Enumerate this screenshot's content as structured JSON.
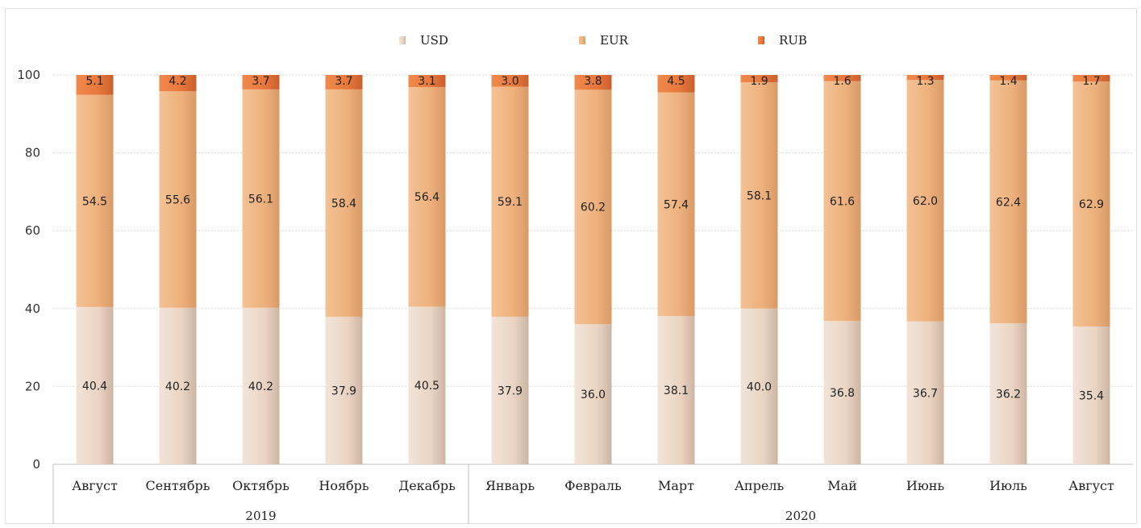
{
  "chart_data": {
    "type": "bar",
    "stacked": true,
    "title": "",
    "xlabel": "",
    "ylabel": "",
    "ylim": [
      0,
      100
    ],
    "yticks": [
      0,
      20,
      40,
      60,
      80,
      100
    ],
    "grid": true,
    "legend_position": "top",
    "categories": [
      "Август",
      "Сентябрь",
      "Октябрь",
      "Ноябрь",
      "Декабрь",
      "Январь",
      "Февраль",
      "Март",
      "Апрель",
      "Май",
      "Июнь",
      "Июль",
      "Август"
    ],
    "groups": [
      {
        "label": "2019",
        "count": 5
      },
      {
        "label": "2020",
        "count": 8
      }
    ],
    "series": [
      {
        "name": "USD",
        "color": "#ecd8c8",
        "values": [
          40.4,
          40.2,
          40.2,
          37.9,
          40.5,
          37.9,
          36.0,
          38.1,
          40.0,
          36.8,
          36.7,
          36.2,
          35.4
        ],
        "labels": [
          "40.4",
          "40.2",
          "40.2",
          "37.9",
          "40.5",
          "37.9",
          "36.0",
          "38.1",
          "40.0",
          "36.8",
          "36.7",
          "36.2",
          "35.4"
        ]
      },
      {
        "name": "EUR",
        "color": "#eeb27e",
        "values": [
          54.5,
          55.6,
          56.1,
          58.4,
          56.4,
          59.1,
          60.2,
          57.4,
          58.1,
          61.6,
          62.0,
          62.4,
          62.9
        ],
        "labels": [
          "54.5",
          "55.6",
          "56.1",
          "58.4",
          "56.4",
          "59.1",
          "60.2",
          "57.4",
          "58.1",
          "61.6",
          "62.0",
          "62.4",
          "62.9"
        ]
      },
      {
        "name": "RUB",
        "color": "#e8773c",
        "values": [
          5.1,
          4.2,
          3.7,
          3.7,
          3.1,
          3.0,
          3.8,
          4.5,
          1.9,
          1.6,
          1.3,
          1.4,
          1.7
        ],
        "labels": [
          "5.1",
          "4.2",
          "3.7",
          "3.7",
          "3.1",
          "3.0",
          "3.8",
          "4.5",
          "1.9",
          "1.6",
          "1.3",
          "1.4",
          "1.7"
        ]
      }
    ]
  }
}
